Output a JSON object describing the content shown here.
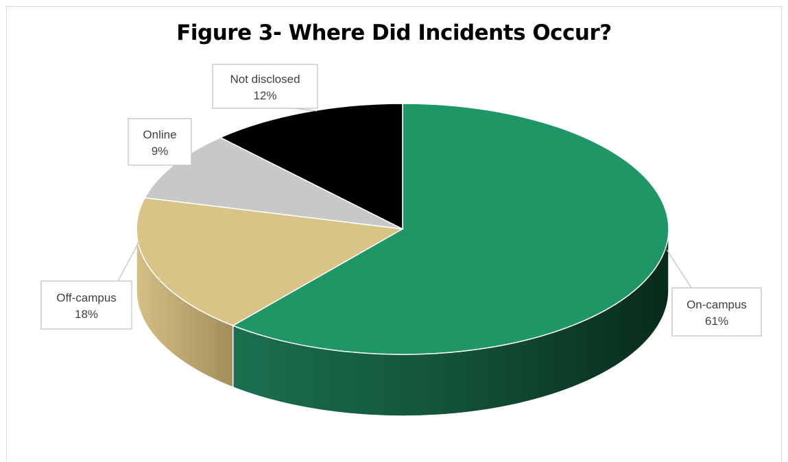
{
  "chart_data": {
    "type": "pie",
    "title": "Figure 3- Where Did Incidents Occur?",
    "slices": [
      {
        "label": "On-campus",
        "value": 61,
        "display": "61%",
        "color": "#1f9666",
        "side_dark": "#0b3a25",
        "side_light": "#1a6b48"
      },
      {
        "label": "Off-campus",
        "value": 18,
        "display": "18%",
        "color": "#d9c487",
        "side_dark": "#8e7a49",
        "side_light": "#c2aa72"
      },
      {
        "label": "Online",
        "value": 9,
        "display": "9%",
        "color": "#c8c8c8",
        "side_dark": "#8a8a8a",
        "side_light": "#b0b0b0"
      },
      {
        "label": "Not disclosed",
        "value": 12,
        "display": "12%",
        "color": "#000000",
        "side_dark": "#000000",
        "side_light": "#1a1a1a"
      }
    ],
    "legend": "none",
    "data_labels": "callouts"
  }
}
